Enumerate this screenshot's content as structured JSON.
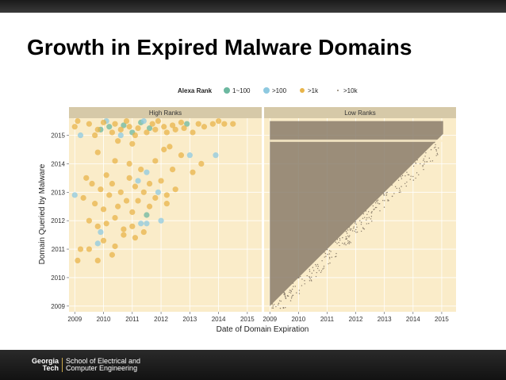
{
  "slide": {
    "title": "Growth in Expired Malware Domains"
  },
  "footer": {
    "logo_line1": "Georgia",
    "logo_line2": "Tech",
    "school_line1": "School of Electrical and",
    "school_line2": "Computer Engineering"
  },
  "colors": {
    "panel_bg": "#faecc9",
    "strip_bg": "#d6c9a8",
    "rank_1_100": "#6cb8a0",
    "rank_gt100": "#8ec9e0",
    "rank_gt1k": "#e8b44a",
    "rank_gt10k": "#8a7d6b"
  },
  "chart_data": {
    "type": "scatter",
    "legend_title": "Alexa Rank",
    "legend": [
      "1~100",
      ">100",
      ">1k",
      ">10k"
    ],
    "legend_position": "top",
    "xlabel": "Date of Domain Expiration",
    "ylabel": "Domain Queried by Malware",
    "xlim": [
      2008.8,
      2015.5
    ],
    "ylim": [
      2008.8,
      2015.6
    ],
    "x_ticks": [
      "2009",
      "2010",
      "2011",
      "2012",
      "2013",
      "2014",
      "2015"
    ],
    "y_ticks": [
      "2009",
      "2010",
      "2011",
      "2012",
      "2013",
      "2014",
      "2015"
    ],
    "panels": [
      {
        "title": "High Ranks",
        "series": [
          {
            "name": "1~100",
            "points": [
              [
                2009.9,
                2015.2
              ],
              [
                2010.2,
                2015.3
              ],
              [
                2010.7,
                2015.35
              ],
              [
                2011.0,
                2015.1
              ],
              [
                2011.3,
                2015.45
              ],
              [
                2011.6,
                2015.25
              ],
              [
                2012.9,
                2015.4
              ],
              [
                2011.5,
                2012.2
              ]
            ]
          },
          {
            "name": ">100",
            "points": [
              [
                2009.0,
                2012.9
              ],
              [
                2009.2,
                2015.0
              ],
              [
                2009.9,
                2011.6
              ],
              [
                2010.1,
                2015.5
              ],
              [
                2010.6,
                2015.0
              ],
              [
                2011.4,
                2015.5
              ],
              [
                2011.2,
                2013.4
              ],
              [
                2011.5,
                2013.7
              ],
              [
                2011.9,
                2013.0
              ],
              [
                2011.3,
                2011.9
              ],
              [
                2011.5,
                2011.9
              ],
              [
                2013.0,
                2014.3
              ],
              [
                2013.9,
                2014.3
              ],
              [
                2009.8,
                2011.2
              ],
              [
                2012.0,
                2012.0
              ]
            ]
          },
          {
            "name": ">1k",
            "points": [
              [
                2009.0,
                2015.3
              ],
              [
                2009.1,
                2015.5
              ],
              [
                2009.5,
                2015.4
              ],
              [
                2009.7,
                2015.0
              ],
              [
                2009.8,
                2015.2
              ],
              [
                2010.0,
                2015.45
              ],
              [
                2010.3,
                2015.1
              ],
              [
                2010.4,
                2015.4
              ],
              [
                2010.6,
                2015.2
              ],
              [
                2010.8,
                2015.5
              ],
              [
                2010.9,
                2015.3
              ],
              [
                2011.1,
                2015.0
              ],
              [
                2011.2,
                2015.25
              ],
              [
                2011.5,
                2015.1
              ],
              [
                2011.7,
                2015.4
              ],
              [
                2011.8,
                2015.2
              ],
              [
                2011.9,
                2015.5
              ],
              [
                2012.1,
                2015.3
              ],
              [
                2012.2,
                2015.1
              ],
              [
                2012.4,
                2015.35
              ],
              [
                2012.5,
                2015.2
              ],
              [
                2012.7,
                2015.45
              ],
              [
                2012.8,
                2015.25
              ],
              [
                2013.1,
                2015.1
              ],
              [
                2013.3,
                2015.4
              ],
              [
                2013.5,
                2015.3
              ],
              [
                2013.8,
                2015.4
              ],
              [
                2014.0,
                2015.5
              ],
              [
                2014.2,
                2015.4
              ],
              [
                2014.5,
                2015.4
              ],
              [
                2010.5,
                2014.8
              ],
              [
                2011.0,
                2014.7
              ],
              [
                2012.3,
                2014.6
              ],
              [
                2009.8,
                2014.4
              ],
              [
                2010.4,
                2014.1
              ],
              [
                2010.9,
                2014.0
              ],
              [
                2011.3,
                2013.8
              ],
              [
                2011.8,
                2014.1
              ],
              [
                2012.4,
                2013.8
              ],
              [
                2012.7,
                2014.3
              ],
              [
                2013.1,
                2013.7
              ],
              [
                2013.4,
                2014.0
              ],
              [
                2009.4,
                2013.5
              ],
              [
                2009.6,
                2013.3
              ],
              [
                2009.9,
                2013.1
              ],
              [
                2010.1,
                2013.6
              ],
              [
                2010.3,
                2013.3
              ],
              [
                2010.6,
                2013.0
              ],
              [
                2010.9,
                2013.5
              ],
              [
                2011.1,
                2013.2
              ],
              [
                2011.4,
                2013.0
              ],
              [
                2011.6,
                2013.3
              ],
              [
                2011.8,
                2012.8
              ],
              [
                2012.0,
                2013.4
              ],
              [
                2012.2,
                2012.9
              ],
              [
                2012.5,
                2013.1
              ],
              [
                2009.3,
                2012.8
              ],
              [
                2009.7,
                2012.6
              ],
              [
                2010.0,
                2012.4
              ],
              [
                2010.2,
                2012.9
              ],
              [
                2010.5,
                2012.5
              ],
              [
                2010.8,
                2012.7
              ],
              [
                2011.0,
                2012.3
              ],
              [
                2011.2,
                2012.7
              ],
              [
                2011.6,
                2012.5
              ],
              [
                2012.2,
                2012.6
              ],
              [
                2009.5,
                2012.0
              ],
              [
                2009.8,
                2011.8
              ],
              [
                2010.1,
                2011.9
              ],
              [
                2010.4,
                2012.1
              ],
              [
                2010.7,
                2011.7
              ],
              [
                2011.0,
                2011.8
              ],
              [
                2011.4,
                2011.6
              ],
              [
                2009.2,
                2011.0
              ],
              [
                2009.5,
                2011.0
              ],
              [
                2010.0,
                2011.3
              ],
              [
                2010.4,
                2011.1
              ],
              [
                2010.7,
                2011.5
              ],
              [
                2011.1,
                2011.4
              ],
              [
                2009.1,
                2010.6
              ],
              [
                2009.8,
                2010.6
              ],
              [
                2010.3,
                2010.8
              ],
              [
                2012.1,
                2014.5
              ]
            ]
          }
        ]
      },
      {
        "title": "Low Ranks",
        "series": [
          {
            "name": ">10k",
            "description": "dense triangular band of points: domains queried after their expiration date",
            "region": "x from 2009 to 2015; y from x to 2015.5"
          }
        ]
      }
    ]
  }
}
